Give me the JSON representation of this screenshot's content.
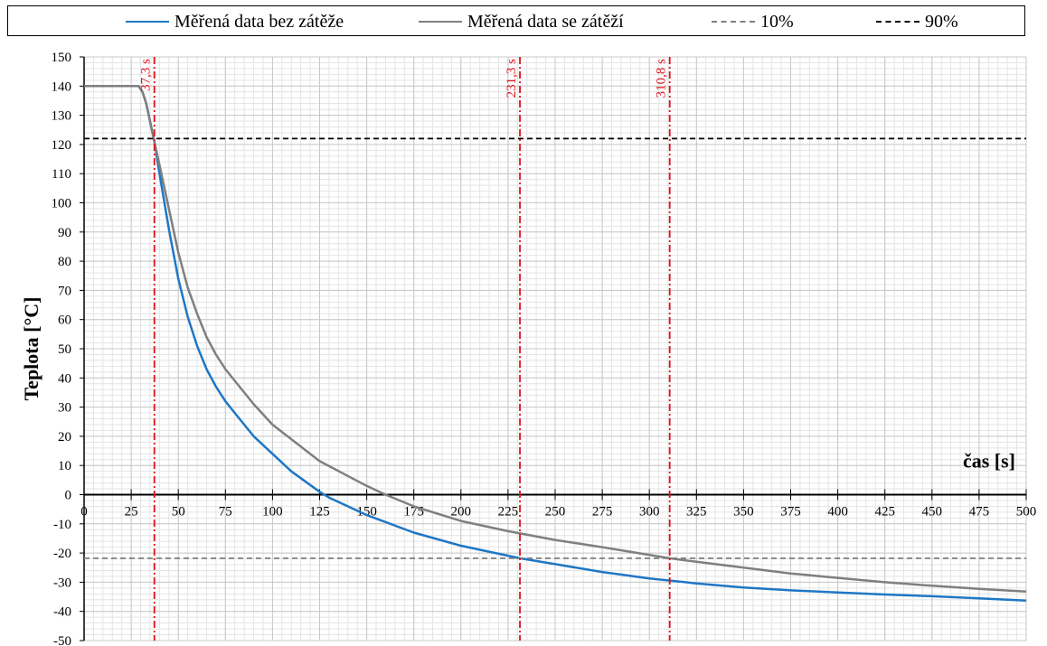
{
  "chart_data": {
    "type": "line",
    "xlabel": "čas [s]",
    "ylabel": "Teplota [°C]",
    "xlim": [
      0,
      500
    ],
    "ylim": [
      -50,
      150
    ],
    "x_ticks": [
      0,
      25,
      50,
      75,
      100,
      125,
      150,
      175,
      200,
      225,
      250,
      275,
      300,
      325,
      350,
      375,
      400,
      425,
      450,
      475,
      500
    ],
    "y_ticks": [
      -50,
      -40,
      -30,
      -20,
      -10,
      0,
      10,
      20,
      30,
      40,
      50,
      60,
      70,
      80,
      90,
      100,
      110,
      120,
      130,
      140,
      150
    ],
    "grid": true,
    "legend_position": "top",
    "series": [
      {
        "name": "Měřená data bez zátěže",
        "color": "#1f77c4",
        "style": "solid",
        "x": [
          0,
          25,
          29,
          31,
          33,
          35,
          37.3,
          40,
          45,
          50,
          55,
          60,
          65,
          70,
          75,
          80,
          90,
          100,
          110,
          125,
          130,
          150,
          175,
          200,
          231.3,
          250,
          275,
          300,
          325,
          350,
          375,
          400,
          425,
          450,
          475,
          500
        ],
        "y": [
          140,
          140,
          140,
          138,
          134,
          128,
          121,
          110,
          91,
          74,
          61,
          51,
          43,
          37,
          32,
          28,
          20,
          14,
          8,
          1,
          -1,
          -7,
          -13,
          -17.5,
          -21.8,
          -23.8,
          -26.5,
          -28.7,
          -30.4,
          -31.8,
          -32.8,
          -33.5,
          -34.2,
          -34.8,
          -35.5,
          -36.3
        ]
      },
      {
        "name": "Měřená data se zátěží",
        "color": "#7f7f7f",
        "style": "solid",
        "x": [
          0,
          25,
          29,
          31,
          33,
          35,
          37.3,
          40,
          45,
          50,
          55,
          60,
          65,
          70,
          75,
          80,
          90,
          100,
          110,
          125,
          150,
          160,
          175,
          200,
          225,
          250,
          275,
          310.8,
          325,
          350,
          375,
          400,
          425,
          450,
          475,
          500
        ],
        "y": [
          140,
          140,
          140,
          138,
          134,
          128,
          121,
          113,
          98,
          83,
          71,
          62,
          54,
          48,
          43,
          39,
          31,
          24,
          19,
          11.5,
          3,
          0,
          -4,
          -9,
          -12.5,
          -15.5,
          -18,
          -21.8,
          -23,
          -25,
          -27,
          -28.5,
          -30,
          -31.2,
          -32.3,
          -33.2
        ]
      },
      {
        "name": "10%",
        "color": "#7f7f7f",
        "style": "dashed",
        "x": [
          0,
          500
        ],
        "y": [
          -21.8,
          -21.8
        ]
      },
      {
        "name": "90%",
        "color": "#000000",
        "style": "dashed",
        "x": [
          0,
          500
        ],
        "y": [
          122,
          122
        ]
      }
    ],
    "vlines": [
      {
        "x": 37.3,
        "label": "37,3 s",
        "color": "#e0101a"
      },
      {
        "x": 231.3,
        "label": "231,3 s",
        "color": "#e0101a"
      },
      {
        "x": 310.8,
        "label": "310,8 s",
        "color": "#e0101a"
      }
    ]
  }
}
